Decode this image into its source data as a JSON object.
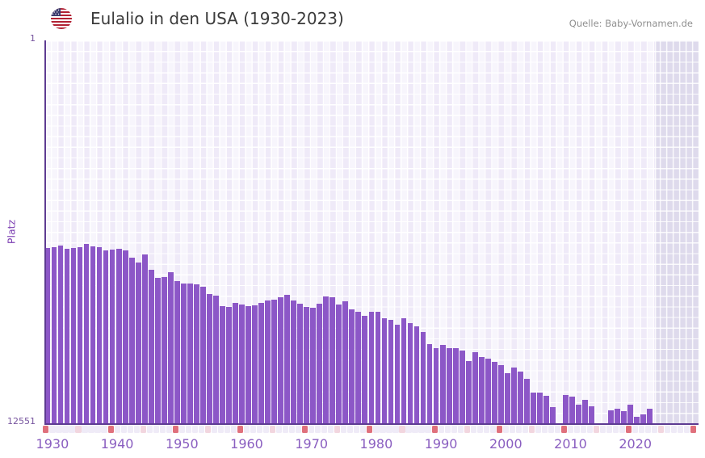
{
  "header": {
    "title": "Eulalio in den USA (1930-2023)",
    "source": "Quelle: Baby-Vornamen.de",
    "flag_icon": "us-flag-icon"
  },
  "y_axis": {
    "label": "Platz",
    "top_tick": "1",
    "bottom_tick": "12551"
  },
  "x_axis": {
    "tick_labels": [
      "1930",
      "1940",
      "1950",
      "1960",
      "1970",
      "1980",
      "1990",
      "2000",
      "2010",
      "2020"
    ]
  },
  "colors": {
    "bar": "#8c57c7",
    "plot_background": "#efeaf8",
    "future_band_background": "#dedaec",
    "grid_line": "#ffffff",
    "axis_line": "#5e3b92",
    "axis_tick_text": "#76549e",
    "x_tick_text": "#8a5ec0",
    "y_label_text": "#7c3fb2",
    "ruler_decade": "#e0707c",
    "ruler_half_decade": "#f2d6df",
    "ruler_year": "#efebf7",
    "title_text": "#3b3b3b",
    "source_text": "#8f8f8f",
    "flag_red": "#b22234",
    "flag_blue": "#3c3b6e"
  },
  "chart_data": {
    "type": "bar",
    "title": "Eulalio in den USA (1930-2023)",
    "xlabel": "",
    "ylabel": "Platz",
    "legend": false,
    "grid": true,
    "y_axis": {
      "top_value": 1,
      "bottom_value": 12551,
      "inverted_rank_scale": true
    },
    "x_ticks": [
      1930,
      1940,
      1950,
      1960,
      1970,
      1980,
      1990,
      2000,
      2010,
      2020
    ],
    "start_year": 1930,
    "end_year": 2023,
    "missing_years": [
      2009,
      2015,
      2016
    ],
    "ranks": [
      6800,
      6790,
      6730,
      6840,
      6800,
      6790,
      6660,
      6750,
      6770,
      6880,
      6860,
      6840,
      6880,
      7130,
      7270,
      7010,
      7530,
      7780,
      7750,
      7600,
      7890,
      7970,
      7970,
      7990,
      8080,
      8320,
      8360,
      8700,
      8740,
      8610,
      8660,
      8710,
      8680,
      8600,
      8520,
      8490,
      8410,
      8330,
      8520,
      8630,
      8730,
      8760,
      8620,
      8390,
      8430,
      8650,
      8560,
      8830,
      8910,
      9030,
      8910,
      8910,
      9120,
      9150,
      9310,
      9100,
      9280,
      9380,
      9570,
      9950,
      10100,
      9980,
      10100,
      10100,
      10170,
      10520,
      10230,
      10380,
      10440,
      10550,
      10640,
      10910,
      10720,
      10860,
      11090,
      11550,
      11550,
      11660,
      12020,
      null,
      11620,
      11680,
      11940,
      11770,
      12000,
      null,
      null,
      12140,
      12070,
      12160,
      11940,
      12340,
      12250,
      12070
    ]
  }
}
